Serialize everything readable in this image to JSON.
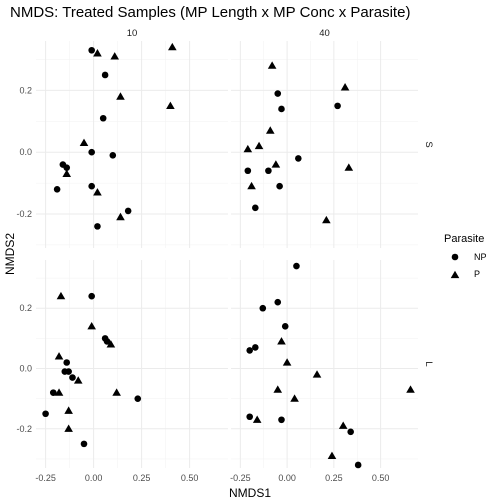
{
  "chart_data": {
    "type": "scatter",
    "title": "NMDS: Treated Samples (MP Length x MP Conc x Parasite)",
    "xlabel": "NMDS1",
    "ylabel": "NMDS2",
    "grid": true,
    "legend_position": "right",
    "legend": {
      "title": "Parasite",
      "entries": [
        {
          "name": "NP",
          "shape": "circle"
        },
        {
          "name": "P",
          "shape": "triangle"
        }
      ]
    },
    "x_ticks": [
      -0.25,
      0.0,
      0.25,
      0.5
    ],
    "x_tick_labels": [
      "-0.25",
      "0.00",
      "0.25",
      "0.50"
    ],
    "xlim": [
      -0.3,
      0.7
    ],
    "y_ticks": [
      -0.2,
      0.0,
      0.2
    ],
    "y_tick_labels": [
      "-0.2",
      "0.0",
      "0.2"
    ],
    "rows": [
      {
        "label": "S",
        "ylim": [
          -0.31,
          0.36
        ]
      },
      {
        "label": "L",
        "ylim": [
          -0.33,
          0.36
        ]
      }
    ],
    "columns": [
      "10",
      "40"
    ],
    "panels": [
      {
        "row": "S",
        "col": "10",
        "NP": [
          [
            -0.01,
            0.33
          ],
          [
            0.06,
            0.25
          ],
          [
            0.05,
            0.11
          ],
          [
            -0.01,
            0.0
          ],
          [
            0.1,
            -0.01
          ],
          [
            -0.16,
            -0.04
          ],
          [
            -0.14,
            -0.05
          ],
          [
            -0.19,
            -0.12
          ],
          [
            -0.01,
            -0.11
          ],
          [
            0.18,
            -0.19
          ],
          [
            0.02,
            -0.24
          ]
        ],
        "P": [
          [
            0.02,
            0.32
          ],
          [
            0.11,
            0.31
          ],
          [
            0.41,
            0.34
          ],
          [
            0.14,
            0.18
          ],
          [
            0.4,
            0.15
          ],
          [
            -0.05,
            0.03
          ],
          [
            -0.14,
            -0.07
          ],
          [
            0.02,
            -0.13
          ],
          [
            0.14,
            -0.21
          ]
        ]
      },
      {
        "row": "S",
        "col": "40",
        "NP": [
          [
            -0.05,
            0.19
          ],
          [
            -0.03,
            0.14
          ],
          [
            0.27,
            0.15
          ],
          [
            0.06,
            -0.02
          ],
          [
            -0.21,
            -0.06
          ],
          [
            -0.1,
            -0.06
          ],
          [
            -0.04,
            -0.11
          ],
          [
            -0.17,
            -0.18
          ]
        ],
        "P": [
          [
            -0.08,
            0.28
          ],
          [
            0.31,
            0.21
          ],
          [
            -0.09,
            0.07
          ],
          [
            -0.15,
            0.02
          ],
          [
            -0.21,
            0.01
          ],
          [
            -0.06,
            -0.04
          ],
          [
            0.33,
            -0.05
          ],
          [
            -0.19,
            -0.11
          ],
          [
            0.21,
            -0.22
          ]
        ]
      },
      {
        "row": "L",
        "col": "10",
        "NP": [
          [
            -0.01,
            0.24
          ],
          [
            0.06,
            0.1
          ],
          [
            0.07,
            0.09
          ],
          [
            -0.14,
            0.02
          ],
          [
            -0.15,
            -0.01
          ],
          [
            -0.13,
            -0.01
          ],
          [
            -0.11,
            -0.03
          ],
          [
            -0.21,
            -0.08
          ],
          [
            -0.25,
            -0.15
          ],
          [
            0.23,
            -0.1
          ],
          [
            -0.05,
            -0.25
          ]
        ],
        "P": [
          [
            -0.17,
            0.24
          ],
          [
            -0.01,
            0.14
          ],
          [
            0.09,
            0.08
          ],
          [
            -0.18,
            0.04
          ],
          [
            -0.08,
            -0.04
          ],
          [
            0.12,
            -0.08
          ],
          [
            -0.18,
            -0.08
          ],
          [
            -0.13,
            -0.14
          ],
          [
            -0.13,
            -0.2
          ]
        ]
      },
      {
        "row": "L",
        "col": "40",
        "NP": [
          [
            0.05,
            0.34
          ],
          [
            -0.13,
            0.2
          ],
          [
            -0.05,
            0.22
          ],
          [
            -0.01,
            0.14
          ],
          [
            -0.17,
            0.07
          ],
          [
            -0.2,
            0.06
          ],
          [
            -0.2,
            -0.16
          ],
          [
            -0.03,
            -0.17
          ],
          [
            0.34,
            -0.21
          ],
          [
            0.38,
            -0.32
          ]
        ],
        "P": [
          [
            -0.03,
            0.09
          ],
          [
            0.16,
            -0.02
          ],
          [
            0.0,
            0.02
          ],
          [
            -0.05,
            -0.07
          ],
          [
            0.04,
            -0.1
          ],
          [
            0.66,
            -0.07
          ],
          [
            -0.16,
            -0.17
          ],
          [
            0.3,
            -0.19
          ],
          [
            0.24,
            -0.29
          ]
        ]
      }
    ]
  }
}
